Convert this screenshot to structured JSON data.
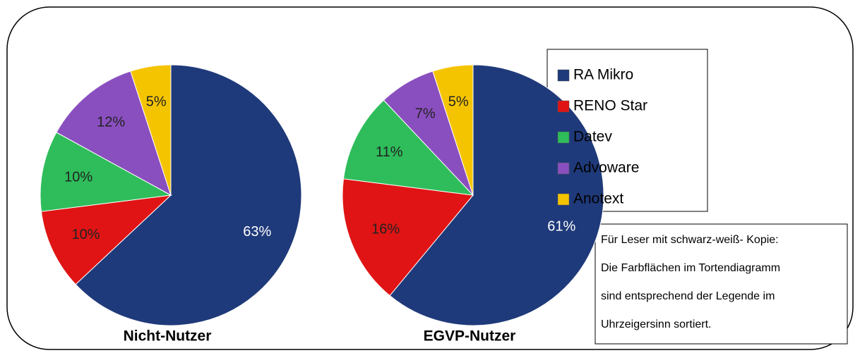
{
  "chart_data": [
    {
      "type": "pie",
      "title": "Nicht-Nutzer",
      "categories": [
        "RA Mikro",
        "RENO Star",
        "Datev",
        "Advoware",
        "Anotext"
      ],
      "values": [
        63,
        10,
        10,
        12,
        5
      ],
      "value_labels": [
        "63%",
        "10%",
        "10%",
        "12%",
        "5%"
      ],
      "colors": [
        "#1f3a7a",
        "#e01414",
        "#2ebd5a",
        "#8a4fbf",
        "#f5c400"
      ]
    },
    {
      "type": "pie",
      "title": "EGVP-Nutzer",
      "categories": [
        "RA Mikro",
        "RENO Star",
        "Datev",
        "Advoware",
        "Anotext"
      ],
      "values": [
        61,
        16,
        11,
        7,
        5
      ],
      "value_labels": [
        "61%",
        "16%",
        "11%",
        "7%",
        "5%"
      ],
      "colors": [
        "#1f3a7a",
        "#e01414",
        "#2ebd5a",
        "#8a4fbf",
        "#f5c400"
      ]
    }
  ],
  "note": [
    "Für Leser mit schwarz-weiß- Kopie:",
    "Die Farbflächen im Tortendiagramm",
    "sind entsprechend der Legende im",
    "Uhrzeigersinn sortiert."
  ]
}
